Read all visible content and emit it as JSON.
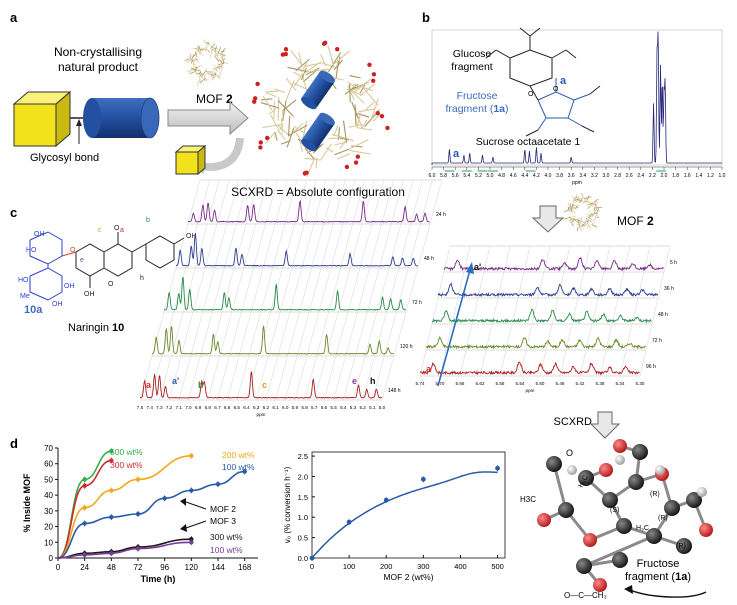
{
  "panels": {
    "a": "a",
    "b": "b",
    "c": "c",
    "d": "d"
  },
  "panel_a": {
    "natural_product": [
      "Non-crystallising",
      "natural product"
    ],
    "mof_label": "MOF",
    "mof_number": "2",
    "glycosyl": "Glycosyl bond",
    "scxrd": "SCXRD = Absolute configuration"
  },
  "panel_b": {
    "glucose": [
      "Glucose",
      "fragment"
    ],
    "fructose_line1": "Fructose",
    "fructose_line2": "fragment (",
    "fructose_id": "1a",
    "fructose_close": ")",
    "compound": "Sucrose octaacetate",
    "compound_num": "1",
    "peak_a": "a",
    "ring_a": "a",
    "axis_ticks": [
      "6.0",
      "5.8",
      "5.6",
      "5.4",
      "5.2",
      "5.0",
      "4.8",
      "4.6",
      "4.4",
      "4.2",
      "4.0",
      "3.8",
      "3.6",
      "3.4",
      "3.2",
      "3.0",
      "2.8",
      "2.6",
      "2.4",
      "2.2",
      "2.0",
      "1.8",
      "1.6",
      "1.4",
      "1.2",
      "1.0"
    ],
    "axis_unit": "ppm"
  },
  "mof_arrow": {
    "label": "MOF",
    "number": "2"
  },
  "panel_c": {
    "naringin": "Naringin",
    "naringin_num": "10",
    "frag_10a": "10a",
    "labels": {
      "a": "a",
      "b": "b",
      "c": "c",
      "e": "e",
      "h": "h",
      "a_prime": "a'"
    },
    "times_left": [
      "148 h",
      "120 h",
      "72 h",
      "48 h",
      "24 h"
    ],
    "times_right": [
      "96 h",
      "72 h",
      "48 h",
      "36 h",
      "5 h"
    ],
    "ticks_left": [
      "7.5",
      "7.4",
      "7.3",
      "7.2",
      "7.1",
      "7.0",
      "6.9",
      "6.8",
      "6.7",
      "6.6",
      "6.5",
      "6.4",
      "6.3",
      "6.2",
      "6.1",
      "6.0",
      "5.9",
      "5.8",
      "5.7",
      "5.6",
      "5.5",
      "5.4",
      "5.3",
      "5.2",
      "5.1",
      "5.0"
    ],
    "ticks_right": [
      "5.74",
      "5.70",
      "5.66",
      "5.62",
      "5.58",
      "5.54",
      "5.50",
      "5.46",
      "5.42",
      "5.38",
      "5.34",
      "5.30"
    ],
    "unit": "ppm",
    "peak_labels_left": {
      "a": "a",
      "a_prime": "a'",
      "b": "b",
      "c": "c",
      "e": "e",
      "h": "h"
    },
    "peak_labels_right": {
      "a": "a",
      "a_prime": "a'"
    }
  },
  "scxrd_arrow": "SCXRD",
  "panel_d_struct": {
    "atoms": {
      "O": "O",
      "H3C_top": "H₃C",
      "H3C_left": "H3C",
      "H3C_bottom": "H₃C",
      "S": "(S)",
      "R1": "(R)",
      "R2": "(R)",
      "R3": "(R)",
      "bottom_group": "O—C—CH₃"
    },
    "fructose_line1": "Fructose",
    "fructose_line2": "fragment (",
    "fructose_id": "1a",
    "fructose_close": ")"
  },
  "chart_data": [
    {
      "type": "line",
      "xlabel": "Time (h)",
      "ylabel": "% Inside MOF",
      "xlim": [
        0,
        180
      ],
      "ylim": [
        0,
        70
      ],
      "xticks": [
        0,
        24,
        48,
        72,
        96,
        120,
        144,
        168
      ],
      "yticks": [
        0,
        10,
        20,
        30,
        40,
        50,
        60,
        70
      ],
      "series": [
        {
          "name": "500 wt%",
          "color": "#2fae4e",
          "x": [
            0,
            24,
            48
          ],
          "y": [
            0,
            50,
            68
          ]
        },
        {
          "name": "300 wt%",
          "color": "#d22a2a",
          "x": [
            0,
            24,
            48
          ],
          "y": [
            0,
            46,
            62
          ]
        },
        {
          "name": "200 wt%",
          "color": "#f0a81c",
          "x": [
            0,
            24,
            48,
            72,
            120
          ],
          "y": [
            0,
            32,
            43,
            50,
            65
          ]
        },
        {
          "name": "100 wt%",
          "color": "#2a5ba8",
          "x": [
            0,
            24,
            48,
            72,
            96,
            120,
            144,
            168
          ],
          "y": [
            0,
            22,
            26,
            28,
            38,
            43,
            47,
            55
          ]
        },
        {
          "name": "300 wt%",
          "color": "#1a1a1a",
          "x": [
            0,
            24,
            48,
            72,
            120
          ],
          "y": [
            0,
            3,
            4,
            7,
            12
          ]
        },
        {
          "name": "100 wt%",
          "color": "#7a3a9a",
          "x": [
            0,
            24,
            48,
            72,
            120
          ],
          "y": [
            0,
            2,
            3,
            6,
            10
          ]
        }
      ],
      "annotations": {
        "mof2": "MOF 2",
        "mof3": "MOF 3"
      }
    },
    {
      "type": "scatter",
      "xlabel": "MOF 2 (wt%)",
      "ylabel": "v₀ (% conversion h⁻¹)",
      "xlim": [
        0,
        520
      ],
      "ylim": [
        0,
        2.6
      ],
      "xticks": [
        0,
        100,
        200,
        300,
        400,
        500
      ],
      "yticks": [
        0,
        0.5,
        1.0,
        1.5,
        2.0,
        2.5
      ],
      "points": {
        "x": [
          0,
          100,
          200,
          300,
          500
        ],
        "y": [
          0,
          0.88,
          1.42,
          1.93,
          2.2
        ]
      },
      "color": "#2a5ba8"
    }
  ]
}
